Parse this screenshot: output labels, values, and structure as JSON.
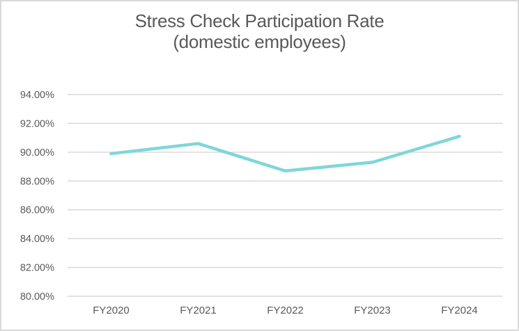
{
  "chart": {
    "title": "Stress Check Participation Rate",
    "subtitle": "(domestic employees)"
  },
  "colors": {
    "line": "#7FD6D9",
    "grid": "#D9D9D9",
    "text": "#595959",
    "border": "#D9D9D9",
    "background": "#FFFFFF"
  },
  "chart_data": {
    "type": "line",
    "title": "Stress Check Participation Rate (domestic employees)",
    "categories": [
      "FY2020",
      "FY2021",
      "FY2022",
      "FY2023",
      "FY2024"
    ],
    "series": [
      {
        "name": "Stress Check Participation Rate",
        "values": [
          89.9,
          90.6,
          88.7,
          89.3,
          91.1
        ]
      }
    ],
    "xlabel": "",
    "ylabel": "",
    "ylim": [
      80,
      94
    ],
    "ytick_step": 2,
    "ytick_labels": [
      "80.00%",
      "82.00%",
      "84.00%",
      "86.00%",
      "88.00%",
      "90.00%",
      "92.00%",
      "94.00%"
    ],
    "grid": "horizontal",
    "legend": "none",
    "markers": "none"
  }
}
